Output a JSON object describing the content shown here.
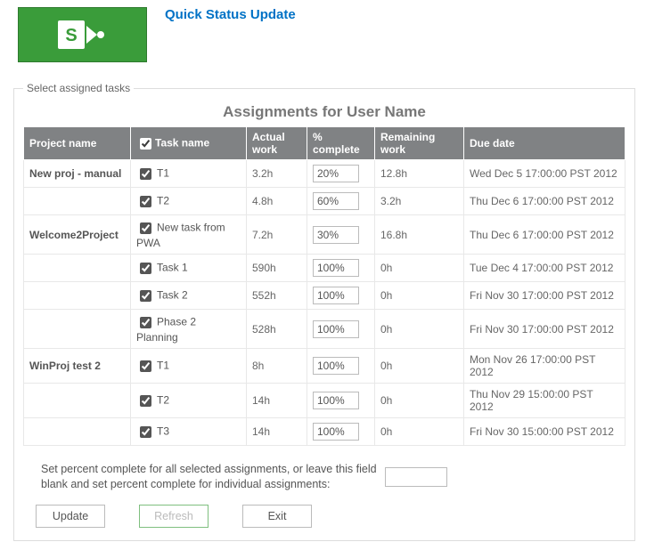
{
  "header": {
    "quick_status_label": "Quick Status Update"
  },
  "fieldset": {
    "legend": "Select assigned tasks",
    "table_title": "Assignments for User Name"
  },
  "columns": {
    "project": "Project name",
    "task": "Task name",
    "actual": "Actual work",
    "pct": "% complete",
    "remaining": "Remaining work",
    "due": "Due date"
  },
  "rows": [
    {
      "project": "New proj - manual",
      "task": "T1",
      "actual": "3.2h",
      "pct": "20%",
      "remaining": "12.8h",
      "due": "Wed Dec 5 17:00:00 PST 2012"
    },
    {
      "project": "",
      "task": "T2",
      "actual": "4.8h",
      "pct": "60%",
      "remaining": "3.2h",
      "due": "Thu Dec 6 17:00:00 PST 2012"
    },
    {
      "project": "Welcome2Project",
      "task": "New task from PWA",
      "actual": "7.2h",
      "pct": "30%",
      "remaining": "16.8h",
      "due": "Thu Dec 6 17:00:00 PST 2012"
    },
    {
      "project": "",
      "task": "Task 1",
      "actual": "590h",
      "pct": "100%",
      "remaining": "0h",
      "due": "Tue Dec 4 17:00:00 PST 2012"
    },
    {
      "project": "",
      "task": "Task 2",
      "actual": "552h",
      "pct": "100%",
      "remaining": "0h",
      "due": "Fri Nov 30 17:00:00 PST 2012"
    },
    {
      "project": "",
      "task": "Phase 2 Planning",
      "actual": "528h",
      "pct": "100%",
      "remaining": "0h",
      "due": "Fri Nov 30 17:00:00 PST 2012"
    },
    {
      "project": "WinProj test 2",
      "task": "T1",
      "actual": "8h",
      "pct": "100%",
      "remaining": "0h",
      "due": "Mon Nov 26 17:00:00 PST 2012"
    },
    {
      "project": "",
      "task": "T2",
      "actual": "14h",
      "pct": "100%",
      "remaining": "0h",
      "due": "Thu Nov 29 15:00:00 PST 2012"
    },
    {
      "project": "",
      "task": "T3",
      "actual": "14h",
      "pct": "100%",
      "remaining": "0h",
      "due": "Fri Nov 30 15:00:00 PST 2012"
    }
  ],
  "bulk": {
    "text": "Set percent complete for all selected assignments, or leave this field blank and set percent complete for individual assignments:"
  },
  "buttons": {
    "update": "Update",
    "refresh": "Refresh",
    "exit": "Exit"
  }
}
